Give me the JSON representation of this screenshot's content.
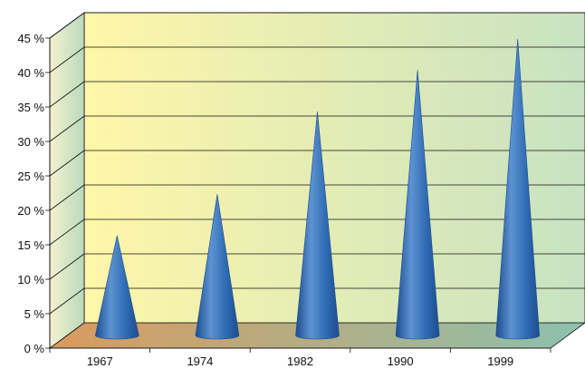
{
  "chart_data": {
    "type": "bar",
    "mark_shape": "cone",
    "categories": [
      "1967",
      "1974",
      "1982",
      "1990",
      "1999"
    ],
    "values": [
      14.5,
      20.5,
      32.5,
      38.5,
      43
    ],
    "ylim": [
      0,
      45
    ],
    "y_ticks": [
      "0 %",
      "5 %",
      "10 %",
      "15 %",
      "20 %",
      "25 %",
      "30 %",
      "35 %",
      "40 %",
      "45 %"
    ],
    "y_tick_values": [
      0,
      5,
      10,
      15,
      20,
      25,
      30,
      35,
      40,
      45
    ],
    "grid": true,
    "title": "",
    "xlabel": "",
    "ylabel": "",
    "colors": {
      "cone": "#2f6bb3",
      "cone_dark": "#1d4d8f",
      "cone_light": "#5d93d3",
      "back_wall_left": "#fff6a8",
      "back_wall_right": "#c7e2c2",
      "side_wall": "#cfe3c6",
      "floor_left": "#d99a5e",
      "floor_right": "#8cc1ad",
      "grid": "#111111"
    }
  }
}
